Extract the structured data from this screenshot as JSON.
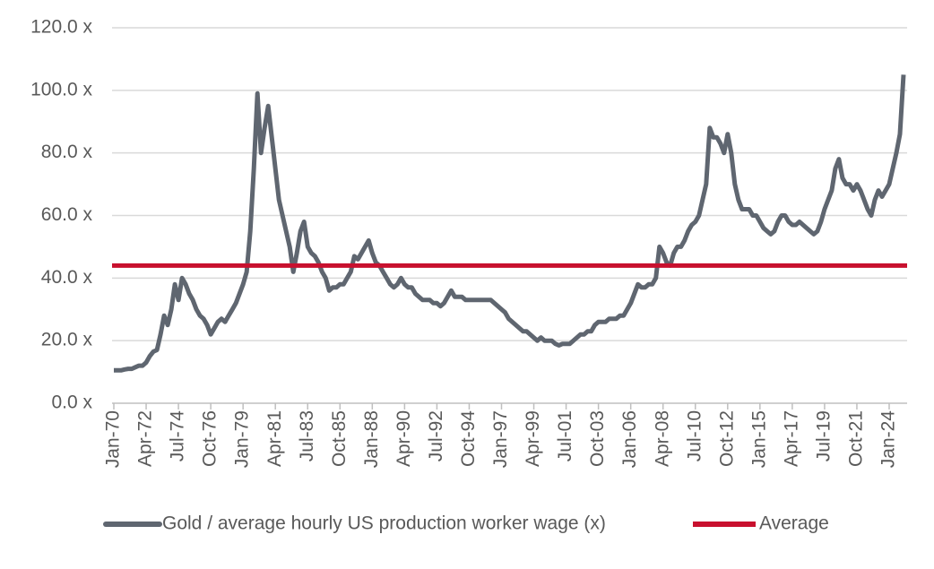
{
  "chart_data": {
    "type": "line",
    "x": [
      "Jan-70",
      "Apr-70",
      "Jul-70",
      "Oct-70",
      "Jan-71",
      "Apr-71",
      "Jul-71",
      "Oct-71",
      "Jan-72",
      "Apr-72",
      "Jul-72",
      "Oct-72",
      "Jan-73",
      "Apr-73",
      "Jul-73",
      "Oct-73",
      "Jan-74",
      "Apr-74",
      "Jul-74",
      "Oct-74",
      "Jan-75",
      "Apr-75",
      "Jul-75",
      "Oct-75",
      "Jan-76",
      "Apr-76",
      "Jul-76",
      "Oct-76",
      "Jan-77",
      "Apr-77",
      "Jul-77",
      "Oct-77",
      "Jan-78",
      "Apr-78",
      "Jul-78",
      "Oct-78",
      "Jan-79",
      "Apr-79",
      "Jul-79",
      "Oct-79",
      "Jan-80",
      "Apr-80",
      "Jul-80",
      "Oct-80",
      "Jan-81",
      "Apr-81",
      "Jul-81",
      "Oct-81",
      "Jan-82",
      "Apr-82",
      "Jul-82",
      "Oct-82",
      "Jan-83",
      "Apr-83",
      "Jul-83",
      "Oct-83",
      "Jan-84",
      "Apr-84",
      "Jul-84",
      "Oct-84",
      "Jan-85",
      "Apr-85",
      "Jul-85",
      "Oct-85",
      "Jan-86",
      "Apr-86",
      "Jul-86",
      "Oct-86",
      "Jan-87",
      "Apr-87",
      "Jul-87",
      "Oct-87",
      "Jan-88",
      "Apr-88",
      "Jul-88",
      "Oct-88",
      "Jan-89",
      "Apr-89",
      "Jul-89",
      "Oct-89",
      "Jan-90",
      "Apr-90",
      "Jul-90",
      "Oct-90",
      "Jan-91",
      "Apr-91",
      "Jul-91",
      "Oct-91",
      "Jan-92",
      "Apr-92",
      "Jul-92",
      "Oct-92",
      "Jan-93",
      "Apr-93",
      "Jul-93",
      "Oct-93",
      "Jan-94",
      "Apr-94",
      "Jul-94",
      "Oct-94",
      "Jan-95",
      "Apr-95",
      "Jul-95",
      "Oct-95",
      "Jan-96",
      "Apr-96",
      "Jul-96",
      "Oct-96",
      "Jan-97",
      "Apr-97",
      "Jul-97",
      "Oct-97",
      "Jan-98",
      "Apr-98",
      "Jul-98",
      "Oct-98",
      "Jan-99",
      "Apr-99",
      "Jul-99",
      "Oct-99",
      "Jan-00",
      "Apr-00",
      "Jul-00",
      "Oct-00",
      "Jan-01",
      "Apr-01",
      "Jul-01",
      "Oct-01",
      "Jan-02",
      "Apr-02",
      "Jul-02",
      "Oct-02",
      "Jan-03",
      "Apr-03",
      "Jul-03",
      "Oct-03",
      "Jan-04",
      "Apr-04",
      "Jul-04",
      "Oct-04",
      "Jan-05",
      "Apr-05",
      "Jul-05",
      "Oct-05",
      "Jan-06",
      "Apr-06",
      "Jul-06",
      "Oct-06",
      "Jan-07",
      "Apr-07",
      "Jul-07",
      "Oct-07",
      "Jan-08",
      "Apr-08",
      "Jul-08",
      "Oct-08",
      "Jan-09",
      "Apr-09",
      "Jul-09",
      "Oct-09",
      "Jan-10",
      "Apr-10",
      "Jul-10",
      "Oct-10",
      "Jan-11",
      "Apr-11",
      "Jul-11",
      "Oct-11",
      "Jan-12",
      "Apr-12",
      "Jul-12",
      "Oct-12",
      "Jan-13",
      "Apr-13",
      "Jul-13",
      "Oct-13",
      "Jan-14",
      "Apr-14",
      "Jul-14",
      "Oct-14",
      "Jan-15",
      "Apr-15",
      "Jul-15",
      "Oct-15",
      "Jan-16",
      "Apr-16",
      "Jul-16",
      "Oct-16",
      "Jan-17",
      "Apr-17",
      "Jul-17",
      "Oct-17",
      "Jan-18",
      "Apr-18",
      "Jul-18",
      "Oct-18",
      "Jan-19",
      "Apr-19",
      "Jul-19",
      "Oct-19",
      "Jan-20",
      "Apr-20",
      "Jul-20",
      "Oct-20",
      "Jan-21",
      "Apr-21",
      "Jul-21",
      "Oct-21",
      "Jan-22",
      "Apr-22",
      "Jul-22",
      "Oct-22",
      "Jan-23",
      "Apr-23",
      "Jul-23",
      "Oct-23",
      "Jan-24",
      "Apr-24",
      "Jul-24",
      "Oct-24",
      "Jan-25"
    ],
    "series": [
      {
        "name": "Gold / average hourly US production worker wage (x)",
        "color": "#5f6670",
        "values": [
          10.5,
          10.5,
          10.5,
          10.8,
          11,
          11,
          11.5,
          12,
          12,
          13,
          15,
          16.5,
          17,
          22,
          28,
          25,
          30,
          38,
          33,
          40,
          38,
          35,
          33,
          30,
          28,
          27,
          25,
          22,
          24,
          26,
          27,
          26,
          28,
          30,
          32,
          35,
          38,
          42,
          55,
          75,
          99,
          80,
          88,
          95,
          85,
          75,
          65,
          60,
          55,
          50,
          42,
          48,
          55,
          58,
          50,
          48,
          47,
          45,
          42,
          40,
          36,
          37,
          37,
          38,
          38,
          40,
          42,
          47,
          46,
          48,
          50,
          52,
          48,
          45,
          44,
          42,
          40,
          38,
          37,
          38,
          40,
          38,
          37,
          37,
          35,
          34,
          33,
          33,
          33,
          32,
          32,
          31,
          32,
          34,
          36,
          34,
          34,
          34,
          33,
          33,
          33,
          33,
          33,
          33,
          33,
          33,
          32,
          31,
          30,
          29,
          27,
          26,
          25,
          24,
          23,
          23,
          22,
          21,
          20,
          21,
          20,
          20,
          20,
          19,
          18.5,
          19,
          19,
          19,
          20,
          21,
          22,
          22,
          23,
          23,
          25,
          26,
          26,
          26,
          27,
          27,
          27,
          28,
          28,
          30,
          32,
          35,
          38,
          37,
          37,
          38,
          38,
          40,
          50,
          48,
          45,
          44,
          48,
          50,
          50,
          52,
          55,
          57,
          58,
          60,
          65,
          70,
          88,
          85,
          85,
          83,
          80,
          86,
          80,
          70,
          65,
          62,
          62,
          62,
          60,
          60,
          58,
          56,
          55,
          54,
          55,
          58,
          60,
          60,
          58,
          57,
          57,
          58,
          57,
          56,
          55,
          54,
          55,
          58,
          62,
          65,
          68,
          75,
          78,
          72,
          70,
          70,
          68,
          70,
          68,
          65,
          62,
          60,
          65,
          68,
          66,
          68,
          70,
          75,
          80,
          86,
          105
        ]
      },
      {
        "name": "Average",
        "color": "#c8102e",
        "value": 44
      }
    ],
    "xticks": [
      "Jan-70",
      "Apr-72",
      "Jul-74",
      "Oct-76",
      "Jan-79",
      "Apr-81",
      "Jul-83",
      "Oct-85",
      "Jan-88",
      "Apr-90",
      "Jul-92",
      "Oct-94",
      "Jan-97",
      "Apr-99",
      "Jul-01",
      "Oct-03",
      "Jan-06",
      "Apr-08",
      "Jul-10",
      "Oct-12",
      "Jan-15",
      "Apr-17",
      "Jul-19",
      "Oct-21",
      "Jan-24"
    ],
    "ylim": [
      0,
      120
    ],
    "yticks": [
      {
        "value": 0,
        "label": "0.0 x"
      },
      {
        "value": 20,
        "label": "20.0 x"
      },
      {
        "value": 40,
        "label": "40.0 x"
      },
      {
        "value": 60,
        "label": "60.0 x"
      },
      {
        "value": 80,
        "label": "80.0 x"
      },
      {
        "value": 100,
        "label": "100.0 x"
      },
      {
        "value": 120,
        "label": "120.0 x"
      }
    ],
    "grid": true,
    "legend": "bottom"
  }
}
